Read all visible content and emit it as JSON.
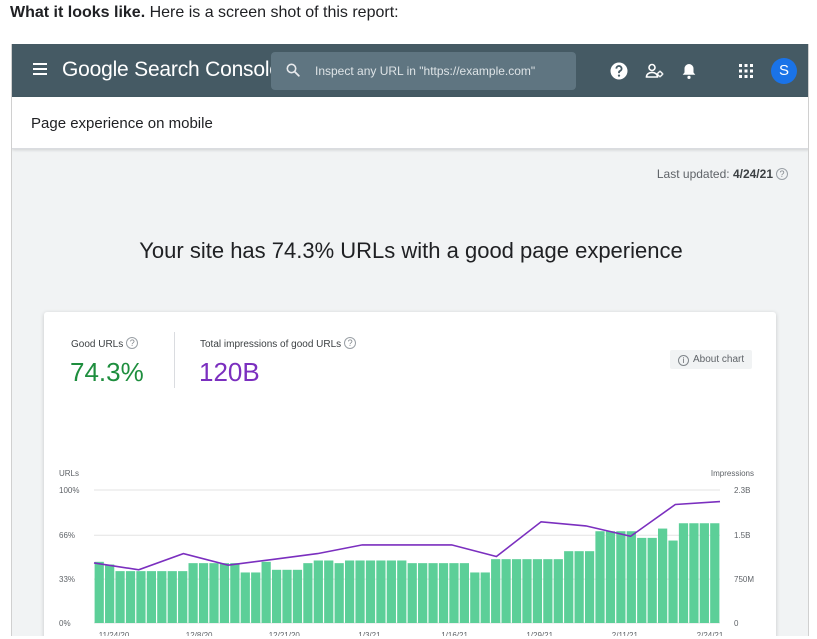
{
  "intro": {
    "lead": "What it looks like.",
    "rest": " Here is a screen shot of this report:"
  },
  "app": {
    "name": "Google Search Console"
  },
  "search": {
    "placeholder": "Inspect any URL in \"https://example.com\""
  },
  "topbar": {
    "icons": [
      "help-icon",
      "manage-users-icon",
      "notifications-icon",
      "apps-grid-icon"
    ],
    "avatar_letter": "S",
    "avatar_color": "#1a73e8"
  },
  "page": {
    "title": "Page experience on mobile",
    "last_updated_label": "Last updated:",
    "last_updated_value": "4/24/21"
  },
  "headline": "Your site has 74.3% URLs with a good page experience",
  "metrics": {
    "good_urls": {
      "label": "Good URLs",
      "value": "74.3%",
      "color": "#1e8e3e"
    },
    "impressions": {
      "label": "Total impressions of good URLs",
      "value": "120B",
      "color": "#7b2fbf"
    }
  },
  "about_chart": "About chart",
  "chart_data": {
    "type": "bar",
    "left_axis": {
      "title": "URLs",
      "ticks": [
        "100%",
        "66%",
        "33%",
        "0%"
      ]
    },
    "right_axis": {
      "title": "Impressions",
      "ticks": [
        "2.3B",
        "1.5B",
        "750M",
        "0"
      ]
    },
    "x_ticks": [
      "11/24/20",
      "12/8/20",
      "12/21/20",
      "1/3/21",
      "1/16/21",
      "1/29/21",
      "2/11/21",
      "2/24/21"
    ],
    "grid": true,
    "bar_color": "#5ccf98",
    "line_color": "#7b2fbf",
    "series": [
      {
        "type": "bar",
        "axis": "left",
        "unit": "%",
        "values": [
          46,
          44,
          39,
          39,
          39,
          39,
          39,
          39,
          39,
          45,
          45,
          45,
          45,
          45,
          38,
          38,
          46,
          40,
          40,
          40,
          45,
          47,
          47,
          45,
          47,
          47,
          47,
          47,
          47,
          47,
          45,
          45,
          45,
          45,
          45,
          45,
          38,
          38,
          48,
          48,
          48,
          48,
          48,
          48,
          48,
          54,
          54,
          54,
          69,
          69,
          69,
          69,
          64,
          64,
          71,
          62,
          75,
          75,
          75,
          75
        ]
      },
      {
        "type": "line",
        "axis": "right",
        "unit": "impressions (billions)",
        "values": [
          1.04,
          0.92,
          1.2,
          1.0,
          1.1,
          1.2,
          1.35,
          1.35,
          1.35,
          1.15,
          1.75,
          1.68,
          1.5,
          2.05,
          2.1
        ]
      }
    ]
  }
}
